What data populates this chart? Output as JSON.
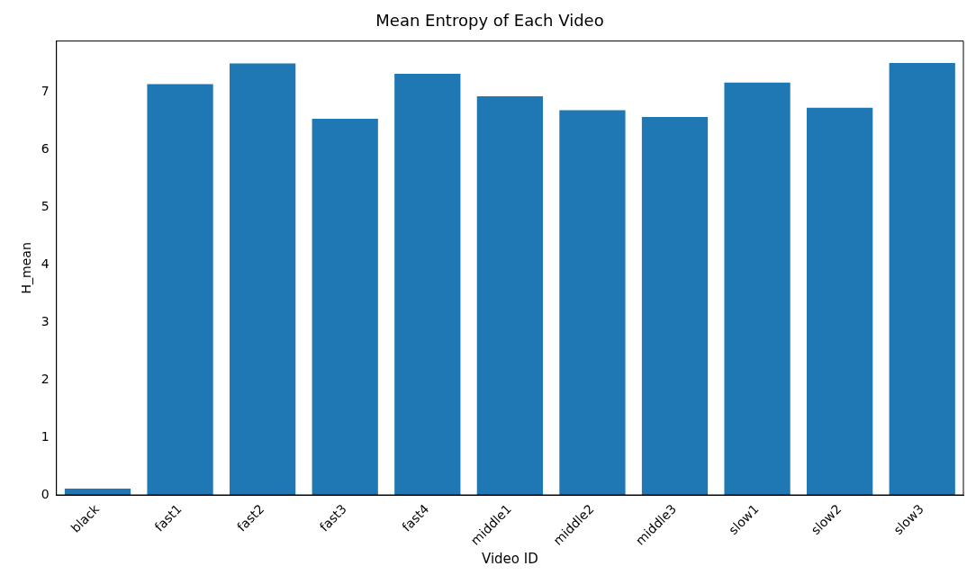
{
  "chart_data": {
    "type": "bar",
    "title": "Mean Entropy of Each Video",
    "xlabel": "Video ID",
    "ylabel": "H_mean",
    "categories": [
      "black",
      "fast1",
      "fast2",
      "fast3",
      "fast4",
      "middle1",
      "middle2",
      "middle3",
      "slow1",
      "slow2",
      "slow3"
    ],
    "values": [
      0.11,
      7.13,
      7.49,
      6.53,
      7.31,
      6.92,
      6.68,
      6.56,
      7.16,
      6.72,
      7.5
    ],
    "color": "#1f77b4",
    "ylim": [
      0,
      7.88
    ],
    "yticks": [
      0,
      1,
      2,
      3,
      4,
      5,
      6,
      7
    ],
    "grid": false,
    "legend": false
  }
}
